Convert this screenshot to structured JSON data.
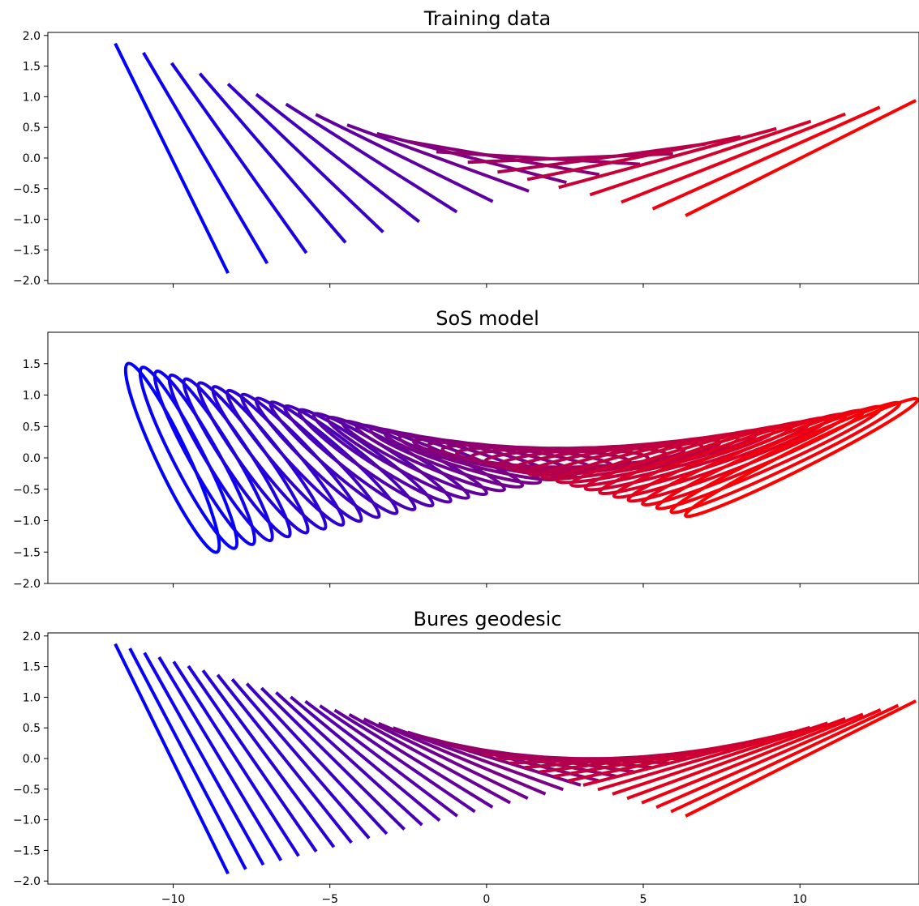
{
  "chart_data": [
    {
      "type": "line",
      "title": "Training data",
      "ylim": [
        -2.05,
        2.05
      ],
      "yticks": [
        "2.0",
        "1.5",
        "1.0",
        "0.5",
        "0.0",
        "−0.5",
        "−1.0",
        "−1.5",
        "−2.0"
      ],
      "yticks_values": [
        2.0,
        1.5,
        1.0,
        0.5,
        0.0,
        -0.5,
        -1.0,
        -1.5,
        -2.0
      ],
      "show_xtick_labels": false,
      "grid": false,
      "color_start": "#0000ff",
      "color_end": "#ff0000",
      "segments": [
        {
          "x1": -11.85,
          "y1": 1.87,
          "x2": -8.25,
          "y2": -1.88
        },
        {
          "x1": -10.95,
          "y1": 1.72,
          "x2": -7.0,
          "y2": -1.72
        },
        {
          "x1": -10.05,
          "y1": 1.55,
          "x2": -5.75,
          "y2": -1.55
        },
        {
          "x1": -9.15,
          "y1": 1.38,
          "x2": -4.5,
          "y2": -1.38
        },
        {
          "x1": -8.25,
          "y1": 1.21,
          "x2": -3.3,
          "y2": -1.21
        },
        {
          "x1": -7.35,
          "y1": 1.04,
          "x2": -2.15,
          "y2": -1.04
        },
        {
          "x1": -6.4,
          "y1": 0.88,
          "x2": -0.95,
          "y2": -0.88
        },
        {
          "x1": -5.45,
          "y1": 0.71,
          "x2": 0.2,
          "y2": -0.71
        },
        {
          "x1": -4.45,
          "y1": 0.54,
          "x2": 1.35,
          "y2": -0.54
        },
        {
          "x1": -3.5,
          "y1": 0.4,
          "x2": 2.55,
          "y2": -0.4
        },
        {
          "x1": -2.5,
          "y1": 0.27,
          "x2": 3.6,
          "y2": -0.27
        },
        {
          "x1": -1.6,
          "y1": 0.1,
          "x2": 4.9,
          "y2": -0.1
        },
        {
          "x1": -0.6,
          "y1": -0.07,
          "x2": 5.95,
          "y2": 0.07
        },
        {
          "x1": 0.35,
          "y1": -0.23,
          "x2": 7.0,
          "y2": 0.23
        },
        {
          "x1": 1.3,
          "y1": -0.35,
          "x2": 8.1,
          "y2": 0.35
        },
        {
          "x1": 2.3,
          "y1": -0.48,
          "x2": 9.25,
          "y2": 0.48
        },
        {
          "x1": 3.3,
          "y1": -0.6,
          "x2": 10.35,
          "y2": 0.6
        },
        {
          "x1": 4.3,
          "y1": -0.72,
          "x2": 11.45,
          "y2": 0.72
        },
        {
          "x1": 5.3,
          "y1": -0.83,
          "x2": 12.55,
          "y2": 0.83
        },
        {
          "x1": 6.35,
          "y1": -0.94,
          "x2": 13.7,
          "y2": 0.94
        }
      ]
    },
    {
      "type": "line",
      "title": "SoS model",
      "ylim": [
        -2.0,
        2.0
      ],
      "yticks": [
        "1.5",
        "1.0",
        "0.5",
        "0.0",
        "−0.5",
        "−1.0",
        "−1.5",
        "−2.0"
      ],
      "yticks_values": [
        1.5,
        1.0,
        0.5,
        0.0,
        -0.5,
        -1.0,
        -1.5,
        -2.0
      ],
      "show_xtick_labels": false,
      "grid": false,
      "color_start": "#0000ff",
      "color_end": "#ff0000",
      "ellipse_count": 40,
      "ellipse_start": {
        "x1": -11.45,
        "y1": 1.5,
        "x2": -8.6,
        "y2": -1.5,
        "width": 0.15
      },
      "ellipse_end": {
        "x1": 6.35,
        "y1": -0.92,
        "x2": 13.75,
        "y2": 0.93,
        "width": 0.08
      }
    },
    {
      "type": "line",
      "title": "Bures geodesic",
      "ylim": [
        -2.05,
        2.05
      ],
      "yticks": [
        "2.0",
        "1.5",
        "1.0",
        "0.5",
        "0.0",
        "−0.5",
        "−1.0",
        "−1.5",
        "−2.0"
      ],
      "yticks_values": [
        2.0,
        1.5,
        1.0,
        0.5,
        0.0,
        -0.5,
        -1.0,
        -1.5,
        -2.0
      ],
      "show_xtick_labels": true,
      "xticks": [
        "−10",
        "−5",
        "0",
        "5",
        "10"
      ],
      "xticks_values": [
        -10,
        -5,
        0,
        5,
        10
      ],
      "grid": false,
      "color_start": "#0000ff",
      "color_end": "#ff0000",
      "segment_count": 40,
      "segment_start": {
        "x1": -11.85,
        "y1": 1.87,
        "x2": -8.25,
        "y2": -1.88
      },
      "segment_end": {
        "x1": 6.35,
        "y1": -0.94,
        "x2": 13.7,
        "y2": 0.94
      }
    }
  ],
  "xlim": [
    -14.0,
    13.8
  ]
}
